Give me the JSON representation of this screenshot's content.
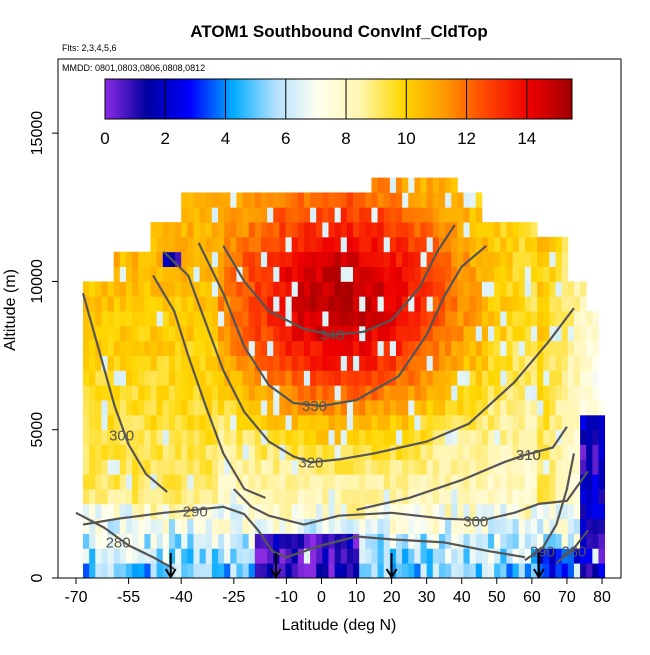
{
  "chart_data": {
    "type": "heatmap",
    "title": "ATOM1 Southbound ConvInf_CldTop",
    "subtitle_flights": "Flts: 2,3,4,5,6",
    "subtitle_dates": "MMDD: 0801,0803,0806,0808,0812",
    "xlabel": "Latitude (deg N)",
    "ylabel": "Altitude (m)",
    "xlim": [
      -70,
      80
    ],
    "ylim": [
      0,
      17500
    ],
    "x_ticks": [
      -70,
      -55,
      -40,
      -25,
      -10,
      0,
      10,
      20,
      30,
      40,
      50,
      60,
      70,
      80
    ],
    "x_tick_labels": [
      "-70",
      "-55",
      "-40",
      "-25",
      "-10",
      "0",
      "10",
      "20",
      "30",
      "40",
      "50",
      "60",
      "70",
      "80"
    ],
    "y_ticks": [
      0,
      5000,
      10000,
      15000
    ],
    "y_tick_labels": [
      "0",
      "5000",
      "10000",
      "15000"
    ],
    "colorbar": {
      "min": 0,
      "max": 15.5,
      "ticks": [
        0,
        2,
        4,
        6,
        8,
        10,
        12,
        14
      ],
      "tick_labels": [
        "0",
        "2",
        "4",
        "6",
        "8",
        "10",
        "12",
        "14"
      ],
      "colors": [
        "#8a2be2",
        "#0000a0",
        "#0000ff",
        "#00aaff",
        "#b0e0ff",
        "#fffff0",
        "#fff5b0",
        "#ffd700",
        "#ff9900",
        "#ff4400",
        "#ee0000",
        "#a00000"
      ]
    },
    "contours": [
      {
        "label": "280",
        "label_at": [
          -58,
          1200
        ],
        "points": [
          [
            -70,
            2200
          ],
          [
            -62,
            1700
          ],
          [
            -55,
            1100
          ],
          [
            -48,
            700
          ],
          [
            -42,
            300
          ]
        ]
      },
      {
        "label": "290",
        "label_at": [
          -36,
          2250
        ],
        "points": [
          [
            -68,
            1800
          ],
          [
            -58,
            2000
          ],
          [
            -45,
            2200
          ],
          [
            -36,
            2300
          ],
          [
            -28,
            2400
          ],
          [
            -22,
            2150
          ],
          [
            -18,
            1600
          ],
          [
            -14,
            900
          ],
          [
            -10,
            700
          ],
          [
            0,
            1100
          ],
          [
            10,
            1400
          ],
          [
            20,
            1300
          ],
          [
            35,
            1200
          ],
          [
            48,
            900
          ],
          [
            58,
            700
          ]
        ]
      },
      {
        "label": "290",
        "label_at": [
          63,
          900
        ],
        "points": [
          [
            58,
            600
          ],
          [
            63,
            1000
          ],
          [
            67,
            1800
          ],
          [
            70,
            3000
          ],
          [
            72,
            4200
          ]
        ]
      },
      {
        "label": "280",
        "label_at": [
          72,
          900
        ],
        "points": [
          [
            67,
            500
          ],
          [
            72,
            1000
          ],
          [
            76,
            1600
          ]
        ]
      },
      {
        "label": "300",
        "label_at": [
          -57,
          4800
        ],
        "points": [
          [
            -68,
            9600
          ],
          [
            -63,
            7500
          ],
          [
            -59,
            5800
          ],
          [
            -55,
            4500
          ],
          [
            -50,
            3500
          ],
          [
            -44,
            2900
          ]
        ]
      },
      {
        "label": "300",
        "label_at": [
          44,
          1900
        ],
        "points": [
          [
            -25,
            3000
          ],
          [
            -20,
            2400
          ],
          [
            -15,
            2100
          ],
          [
            -5,
            1800
          ],
          [
            5,
            2100
          ],
          [
            20,
            2200
          ],
          [
            35,
            2000
          ],
          [
            46,
            1950
          ],
          [
            55,
            2200
          ],
          [
            62,
            2500
          ],
          [
            70,
            2600
          ],
          [
            76,
            3600
          ]
        ]
      },
      {
        "label": "310",
        "label_at": [
          59,
          4150
        ],
        "points": [
          [
            -48,
            10200
          ],
          [
            -42,
            9000
          ],
          [
            -38,
            7500
          ],
          [
            -33,
            5800
          ],
          [
            -28,
            4200
          ],
          [
            -22,
            3000
          ],
          [
            -16,
            2700
          ]
        ]
      },
      {
        "label": "310",
        "label_at": [
          59,
          4150
        ],
        "points": [
          [
            10,
            2300
          ],
          [
            25,
            2700
          ],
          [
            40,
            3300
          ],
          [
            52,
            3900
          ],
          [
            58,
            4150
          ],
          [
            66,
            4400
          ],
          [
            70,
            5100
          ]
        ]
      },
      {
        "label": "320",
        "label_at": [
          -3,
          3900
        ],
        "points": [
          [
            -45,
            11000
          ],
          [
            -38,
            10200
          ],
          [
            -33,
            8600
          ],
          [
            -28,
            7000
          ],
          [
            -22,
            5600
          ],
          [
            -15,
            4600
          ],
          [
            -8,
            4100
          ],
          [
            -3,
            3900
          ],
          [
            5,
            4000
          ],
          [
            15,
            4200
          ],
          [
            30,
            4600
          ],
          [
            42,
            5200
          ],
          [
            55,
            6600
          ],
          [
            65,
            8000
          ],
          [
            72,
            9100
          ]
        ]
      },
      {
        "label": "330",
        "label_at": [
          -2,
          5800
        ],
        "points": [
          [
            -35,
            11300
          ],
          [
            -28,
            9600
          ],
          [
            -22,
            7800
          ],
          [
            -15,
            6500
          ],
          [
            -8,
            5900
          ],
          [
            0,
            5800
          ],
          [
            10,
            6000
          ],
          [
            22,
            6800
          ],
          [
            30,
            8200
          ],
          [
            35,
            9500
          ],
          [
            40,
            10500
          ],
          [
            47,
            11200
          ]
        ]
      },
      {
        "label": "340",
        "label_at": [
          3,
          8200
        ],
        "points": [
          [
            -28,
            11200
          ],
          [
            -22,
            10000
          ],
          [
            -15,
            9000
          ],
          [
            -5,
            8400
          ],
          [
            3,
            8200
          ],
          [
            12,
            8300
          ],
          [
            20,
            8700
          ],
          [
            28,
            9800
          ],
          [
            33,
            11000
          ],
          [
            38,
            11900
          ]
        ]
      }
    ],
    "arrows_x": [
      -43,
      -13,
      20,
      62
    ]
  }
}
